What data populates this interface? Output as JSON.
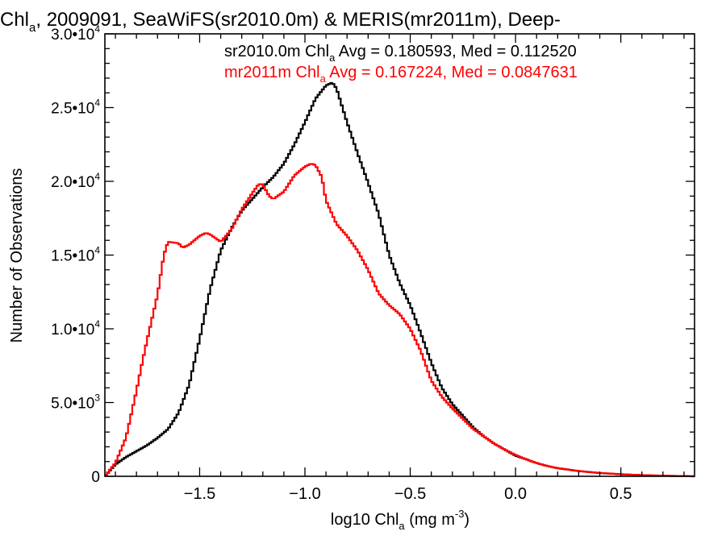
{
  "chart_data": {
    "type": "line",
    "title": "Chl, 2009091, SeaWiFS(sr2010.0m) & MERIS(mr2011m), Deep-",
    "title_parts": {
      "head": "Chl",
      "sub": "a",
      "tail": ", 2009091, SeaWiFS(sr2010.0m) & MERIS(mr2011m), Deep-"
    },
    "xlabel_parts": {
      "head": "log10 Chl",
      "sub": "a",
      "mid": " (mg m",
      "sup": "-3",
      "tail": ")"
    },
    "ylabel": "Number of Observations",
    "xlim": [
      -1.95,
      0.85
    ],
    "ylim": [
      0,
      30000
    ],
    "x_ticks": [
      {
        "v": -1.5,
        "label": "−1.5"
      },
      {
        "v": -1.0,
        "label": "−1.0"
      },
      {
        "v": -0.5,
        "label": "−0.5"
      },
      {
        "v": 0.0,
        "label": "0.0"
      },
      {
        "v": 0.5,
        "label": "0.5"
      }
    ],
    "y_ticks": [
      {
        "v": 0,
        "base": "0",
        "exp": ""
      },
      {
        "v": 5000,
        "base": "5.0•10",
        "exp": "3"
      },
      {
        "v": 10000,
        "base": "1.0•10",
        "exp": "4"
      },
      {
        "v": 15000,
        "base": "1.5•10",
        "exp": "4"
      },
      {
        "v": 20000,
        "base": "2.0•10",
        "exp": "4"
      },
      {
        "v": 25000,
        "base": "2.5•10",
        "exp": "4"
      },
      {
        "v": 30000,
        "base": "3.0•10",
        "exp": "4"
      }
    ],
    "series": [
      {
        "color": "#000000",
        "legend_parts": {
          "head": "sr2010.0m Chl",
          "sub": "a",
          "tail": " Avg = 0.180593, Med = 0.112520"
        },
        "x": [
          -1.95,
          -1.9,
          -1.85,
          -1.8,
          -1.75,
          -1.7,
          -1.65,
          -1.6,
          -1.55,
          -1.5,
          -1.45,
          -1.4,
          -1.35,
          -1.3,
          -1.25,
          -1.2,
          -1.15,
          -1.1,
          -1.05,
          -1.0,
          -0.95,
          -0.9,
          -0.87,
          -0.85,
          -0.8,
          -0.75,
          -0.7,
          -0.65,
          -0.6,
          -0.55,
          -0.5,
          -0.45,
          -0.4,
          -0.35,
          -0.3,
          -0.25,
          -0.2,
          -0.15,
          -0.1,
          -0.05,
          0.0,
          0.05,
          0.1,
          0.15,
          0.2,
          0.3,
          0.4,
          0.5,
          0.6,
          0.7,
          0.8,
          0.85
        ],
        "y": [
          0,
          800,
          1300,
          1700,
          2100,
          2600,
          3200,
          4300,
          6200,
          9300,
          12700,
          15300,
          16800,
          18000,
          18800,
          19600,
          20300,
          21200,
          22500,
          24000,
          25600,
          26500,
          26700,
          26300,
          24000,
          21900,
          19900,
          17800,
          15000,
          13100,
          11600,
          9700,
          7700,
          6000,
          4900,
          4100,
          3300,
          2700,
          2200,
          1800,
          1400,
          1150,
          900,
          700,
          550,
          350,
          220,
          140,
          80,
          40,
          15,
          0
        ]
      },
      {
        "color": "#ff0000",
        "legend_parts": {
          "head": "mr2011m Chl",
          "sub": "a",
          "tail": " Avg = 0.167224, Med = 0.0847631"
        },
        "x": [
          -1.95,
          -1.9,
          -1.85,
          -1.8,
          -1.77,
          -1.75,
          -1.7,
          -1.67,
          -1.65,
          -1.6,
          -1.58,
          -1.55,
          -1.5,
          -1.47,
          -1.45,
          -1.4,
          -1.35,
          -1.3,
          -1.25,
          -1.22,
          -1.2,
          -1.17,
          -1.15,
          -1.1,
          -1.05,
          -1.0,
          -0.97,
          -0.95,
          -0.92,
          -0.9,
          -0.85,
          -0.8,
          -0.75,
          -0.7,
          -0.65,
          -0.6,
          -0.55,
          -0.5,
          -0.45,
          -0.4,
          -0.35,
          -0.3,
          -0.25,
          -0.2,
          -0.15,
          -0.1,
          -0.05,
          0.0,
          0.05,
          0.1,
          0.15,
          0.2,
          0.3,
          0.4,
          0.5,
          0.6,
          0.7,
          0.8,
          0.85
        ],
        "y": [
          0,
          900,
          2600,
          5800,
          7900,
          9200,
          12300,
          15000,
          15900,
          15800,
          15500,
          15700,
          16300,
          16500,
          16400,
          15900,
          16700,
          18100,
          19200,
          19800,
          19800,
          19000,
          18800,
          19300,
          20400,
          21000,
          21200,
          21100,
          20300,
          18700,
          17100,
          16300,
          15300,
          14000,
          12400,
          11600,
          11000,
          10000,
          8500,
          6500,
          5400,
          4600,
          3900,
          3200,
          2700,
          2200,
          1800,
          1450,
          1150,
          900,
          700,
          560,
          360,
          230,
          140,
          80,
          40,
          15,
          0
        ]
      }
    ]
  }
}
